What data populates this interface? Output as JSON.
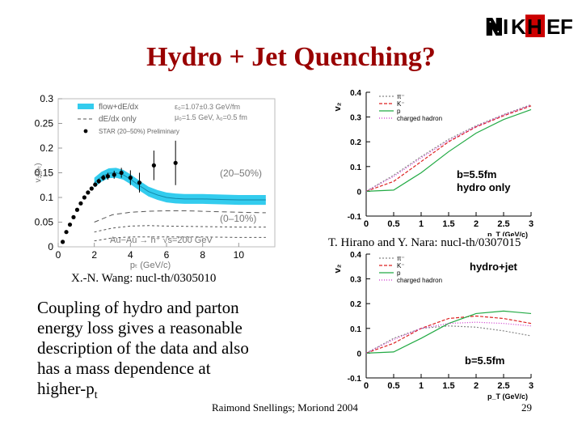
{
  "slide": {
    "title": "Hydro + Jet Quenching?",
    "logo_text": [
      "N",
      "I",
      "K",
      "H",
      "E",
      "F"
    ],
    "ref_wang": "X.-N. Wang: nucl-th/0305010",
    "ref_hirano": "T. Hirano and Y. Nara: nucl-th/0307015",
    "body_lines": [
      "Coupling of hydro and parton",
      "energy loss gives a reasonable",
      "description of the data and also",
      "has a mass dependence at"
    ],
    "body_last_main": "higher-p",
    "body_last_sub": "t",
    "footer": "Raimond Snellings; Moriond 2004",
    "page_number": "29"
  },
  "colors": {
    "title": "#990000",
    "band": "#33ccee",
    "green": "#22aa44",
    "red": "#dd2222",
    "magenta": "#cc33cc",
    "gray": "#888888"
  },
  "chart_data": [
    {
      "type": "line",
      "title": "",
      "ylabel": "v₂(pₜ)",
      "xlabel": "pₜ (GeV/c)",
      "xlim": [
        0,
        12
      ],
      "ylim": [
        0,
        0.3
      ],
      "xticks": [
        "0",
        "2",
        "4",
        "6",
        "8",
        "10"
      ],
      "yticks": [
        "0",
        "0.05",
        "0.1",
        "0.15",
        "0.2",
        "0.25",
        "0.3"
      ],
      "legend": [
        "flow+dE/dx",
        "dE/dx only",
        "STAR (20–50%) Preliminary"
      ],
      "legend_params": [
        "ε₀=1.07±0.3 GeV/fm",
        "μ₀=1.5 GeV, λ₀=0.5 fm"
      ],
      "annotations": [
        "(20–50%)",
        "(0–10%)",
        "Au−Au → h⁺ √s=200 GeV"
      ],
      "series": [
        {
          "name": "flow+dE/dx (20–50%)",
          "style": "band",
          "x": [
            2,
            2.4,
            2.8,
            3.2,
            3.6,
            4,
            4.5,
            5,
            5.5,
            6,
            6.5,
            7,
            8,
            9,
            10,
            11,
            11.5
          ],
          "y": [
            0.13,
            0.142,
            0.149,
            0.15,
            0.146,
            0.137,
            0.124,
            0.112,
            0.105,
            0.1,
            0.098,
            0.097,
            0.097,
            0.096,
            0.095,
            0.095,
            0.095
          ],
          "band_halfwidth": 0.01
        },
        {
          "name": "dE/dx only (20–50%)",
          "style": "dashed",
          "x": [
            2,
            3,
            4,
            5,
            6,
            7,
            8,
            10,
            11.5
          ],
          "y": [
            0.05,
            0.065,
            0.07,
            0.072,
            0.073,
            0.073,
            0.072,
            0.07,
            0.069
          ]
        },
        {
          "name": "flow+dE/dx (0–10%)",
          "style": "dashed",
          "x": [
            2,
            3,
            4,
            5,
            6,
            8,
            10,
            11.5
          ],
          "y": [
            0.03,
            0.038,
            0.042,
            0.043,
            0.042,
            0.041,
            0.04,
            0.04
          ]
        },
        {
          "name": "dE/dx only (0–10%)",
          "style": "dashed",
          "x": [
            2,
            3,
            4,
            6,
            8,
            10,
            11.5
          ],
          "y": [
            0.012,
            0.018,
            0.02,
            0.02,
            0.02,
            0.019,
            0.019
          ]
        },
        {
          "name": "STAR (20–50%) Preliminary",
          "style": "points",
          "x": [
            0.25,
            0.45,
            0.65,
            0.85,
            1.05,
            1.25,
            1.45,
            1.65,
            1.85,
            2.05,
            2.25,
            2.5,
            2.75,
            3.1,
            3.5,
            4.0,
            4.5,
            5.3,
            6.5
          ],
          "y": [
            0.01,
            0.03,
            0.045,
            0.06,
            0.075,
            0.088,
            0.1,
            0.11,
            0.118,
            0.126,
            0.133,
            0.14,
            0.143,
            0.146,
            0.15,
            0.14,
            0.13,
            0.165,
            0.17
          ],
          "yerr": [
            0.002,
            0.002,
            0.002,
            0.003,
            0.003,
            0.003,
            0.003,
            0.003,
            0.004,
            0.004,
            0.005,
            0.006,
            0.007,
            0.008,
            0.01,
            0.015,
            0.02,
            0.03,
            0.045
          ]
        }
      ]
    },
    {
      "type": "line",
      "ylabel": "v₂",
      "xlabel": "p_T (GeV/c)",
      "xlim": [
        0,
        3
      ],
      "ylim": [
        -0.1,
        0.4
      ],
      "xticks": [
        "0",
        "0.5",
        "1",
        "1.5",
        "2",
        "2.5",
        "3"
      ],
      "yticks": [
        "-0.1",
        "0",
        "0.1",
        "0.2",
        "0.3",
        "0.4"
      ],
      "legend": [
        "π⁻",
        "K⁻",
        "p",
        "charged hadron"
      ],
      "annotations": [
        "b=5.5fm",
        "hydro only"
      ],
      "series": [
        {
          "name": "π⁻",
          "x": [
            0,
            0.5,
            1,
            1.5,
            2,
            2.5,
            3
          ],
          "y": [
            0.0,
            0.065,
            0.14,
            0.21,
            0.265,
            0.31,
            0.35
          ]
        },
        {
          "name": "K⁻",
          "x": [
            0,
            0.5,
            1,
            1.5,
            2,
            2.5,
            3
          ],
          "y": [
            0.0,
            0.04,
            0.12,
            0.2,
            0.26,
            0.305,
            0.345
          ]
        },
        {
          "name": "p",
          "x": [
            0,
            0.5,
            1,
            1.5,
            2,
            2.5,
            3
          ],
          "y": [
            0.0,
            0.005,
            0.075,
            0.16,
            0.235,
            0.29,
            0.33
          ]
        },
        {
          "name": "charged hadron",
          "x": [
            0,
            0.5,
            1,
            1.5,
            2,
            2.5,
            3
          ],
          "y": [
            0.0,
            0.06,
            0.135,
            0.205,
            0.262,
            0.308,
            0.348
          ]
        }
      ]
    },
    {
      "type": "line",
      "ylabel": "v₂",
      "xlabel": "p_T (GeV/c)",
      "xlim": [
        0,
        3
      ],
      "ylim": [
        -0.1,
        0.4
      ],
      "xticks": [
        "0",
        "0.5",
        "1",
        "1.5",
        "2",
        "2.5",
        "3"
      ],
      "yticks": [
        "-0.1",
        "0",
        "0.1",
        "0.2",
        "0.3",
        "0.4"
      ],
      "legend": [
        "π⁻",
        "K⁻",
        "p",
        "charged hadron"
      ],
      "annotations": [
        "hydro+jet",
        "b=5.5fm"
      ],
      "series": [
        {
          "name": "π⁻",
          "x": [
            0,
            0.5,
            1,
            1.5,
            2,
            2.5,
            3
          ],
          "y": [
            0.0,
            0.06,
            0.1,
            0.11,
            0.105,
            0.09,
            0.07
          ]
        },
        {
          "name": "K⁻",
          "x": [
            0,
            0.5,
            1,
            1.5,
            2,
            2.5,
            3
          ],
          "y": [
            0.0,
            0.04,
            0.1,
            0.14,
            0.15,
            0.14,
            0.12
          ]
        },
        {
          "name": "p",
          "x": [
            0,
            0.5,
            1,
            1.5,
            2,
            2.5,
            3
          ],
          "y": [
            0.0,
            0.005,
            0.06,
            0.12,
            0.16,
            0.17,
            0.16
          ]
        },
        {
          "name": "charged hadron",
          "x": [
            0,
            0.5,
            1,
            1.5,
            2,
            2.5,
            3
          ],
          "y": [
            0.0,
            0.055,
            0.1,
            0.12,
            0.125,
            0.12,
            0.11
          ]
        }
      ]
    }
  ]
}
